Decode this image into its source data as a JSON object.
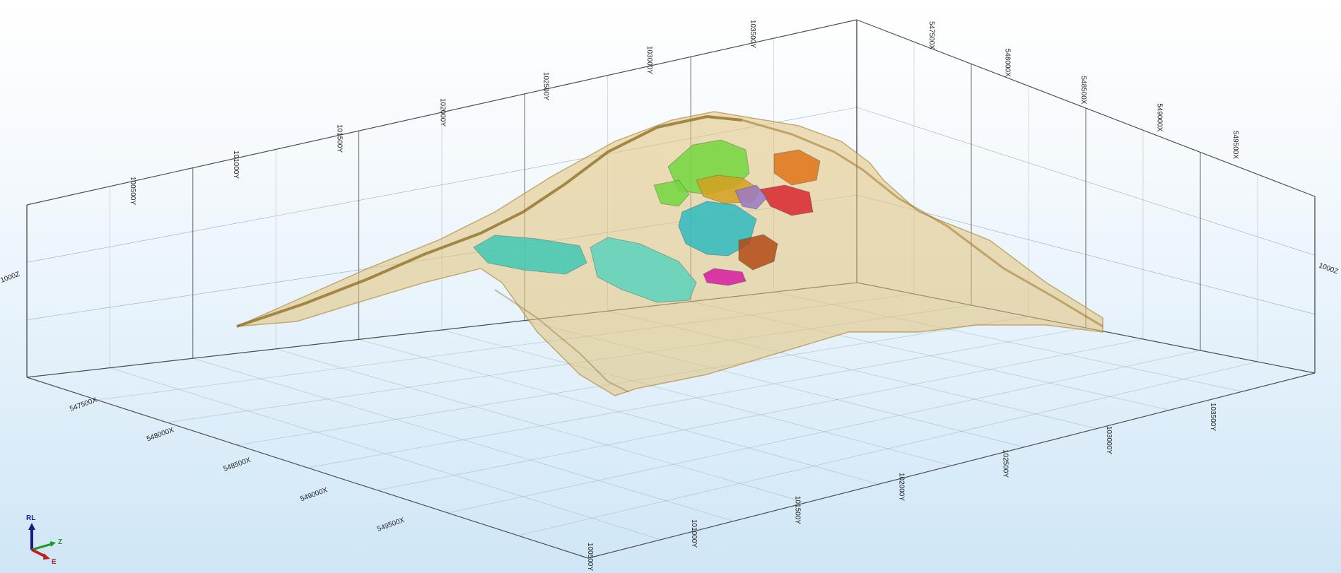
{
  "viewer": {
    "background_top": "#ffffff",
    "background_bottom": "#cfe6f6",
    "grid_color": "#3a3a3a",
    "grid_minor_color": "#8aa0b4"
  },
  "axes": {
    "top_y_labels": [
      "100500Y",
      "101000Y",
      "101500Y",
      "102000Y",
      "102500Y",
      "103000Y",
      "103500Y"
    ],
    "top_x_labels": [
      "547500X",
      "548000X",
      "548500X",
      "549000X",
      "549500X"
    ],
    "left_x_labels": [
      "547500X",
      "548000X",
      "548500X",
      "549000X",
      "549500X"
    ],
    "bottom_y_labels": [
      "100500Y",
      "101000Y",
      "101500Y",
      "102000Y",
      "102500Y",
      "103000Y",
      "103500Y"
    ],
    "left_z_label": "1000Z",
    "right_z_label": "1000Z"
  },
  "orientation_widget": {
    "up_label": "RL",
    "z_label": "Z",
    "e_label": "E",
    "up_color": "#1a1a8c",
    "z_color": "#1f9a1f",
    "e_color": "#c02020"
  },
  "surfaces": {
    "terrain_color": "#d4a84a",
    "orebody_colors": [
      "#40c8b4",
      "#5ad2bc",
      "#74d63e",
      "#2fb8c0",
      "#e07418",
      "#d8262e",
      "#d6a020",
      "#b04a14",
      "#d61aa0",
      "#9a78c8"
    ]
  }
}
